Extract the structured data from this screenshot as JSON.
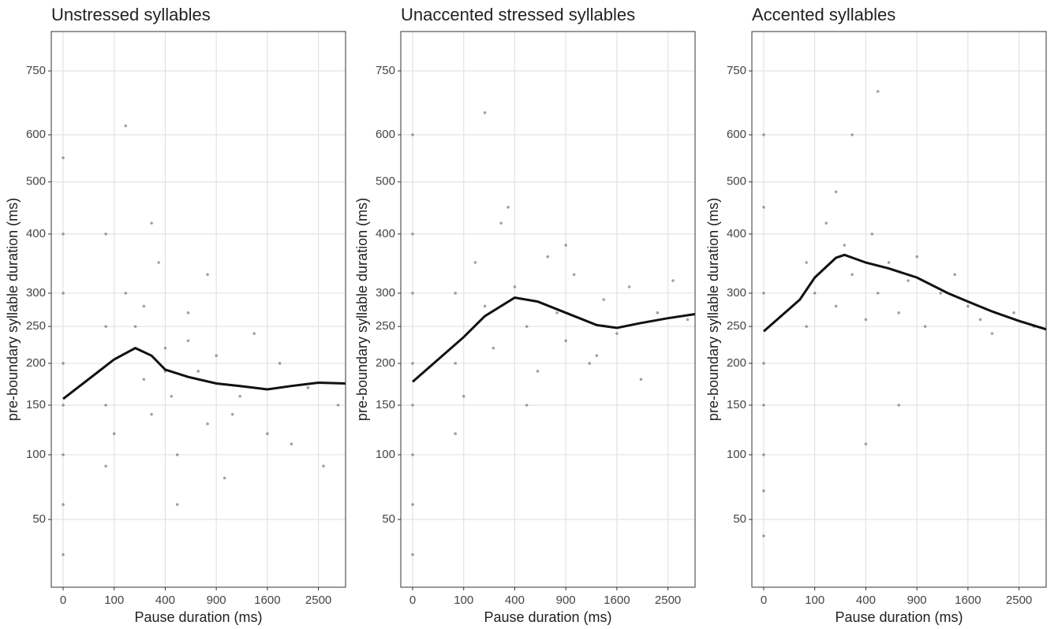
{
  "chart_data": [
    {
      "type": "scatter",
      "title": "Unstressed syllables",
      "x_label": "Pause duration (ms)",
      "y_label": "pre-boundary syllable duration (ms)",
      "x_scale": "sqrt",
      "y_scale": "sqrt",
      "xlim": [
        0,
        3060
      ],
      "ylim": [
        16,
        851
      ],
      "xticks": [
        0,
        100,
        400,
        900,
        1600,
        2500
      ],
      "yticks": [
        50,
        100,
        150,
        200,
        250,
        300,
        400,
        500,
        600,
        750
      ],
      "grid": true,
      "point_color": "#555555",
      "line_color": "#111111",
      "points": {
        "x": [
          0,
          0,
          0,
          0,
          0,
          0,
          0,
          0,
          70,
          70,
          70,
          70,
          100,
          150,
          200,
          250,
          300,
          350,
          400,
          450,
          500,
          600,
          700,
          800,
          900,
          1000,
          1200,
          1400,
          1600,
          1800,
          2000,
          2300,
          2600,
          2900,
          150,
          300,
          500,
          800,
          1100,
          400,
          600,
          250
        ],
        "y": [
          30,
          60,
          100,
          150,
          200,
          300,
          400,
          550,
          90,
          150,
          250,
          400,
          120,
          300,
          250,
          180,
          140,
          350,
          220,
          160,
          100,
          270,
          190,
          130,
          210,
          80,
          160,
          240,
          120,
          200,
          110,
          170,
          90,
          150,
          620,
          420,
          60,
          330,
          140,
          190,
          230,
          280
        ]
      },
      "smooth": {
        "x": [
          0,
          100,
          200,
          300,
          400,
          600,
          900,
          1200,
          1600,
          2000,
          2500,
          3060
        ],
        "y": [
          157,
          205,
          220,
          210,
          192,
          183,
          175,
          172,
          168,
          172,
          176,
          175
        ]
      }
    },
    {
      "type": "scatter",
      "title": "Unaccented stressed syllables",
      "x_label": "Pause duration (ms)",
      "y_label": "pre-boundary syllable duration (ms)",
      "x_scale": "sqrt",
      "y_scale": "sqrt",
      "xlim": [
        0,
        3060
      ],
      "ylim": [
        16,
        851
      ],
      "xticks": [
        0,
        100,
        400,
        900,
        1600,
        2500
      ],
      "yticks": [
        50,
        100,
        150,
        200,
        250,
        300,
        400,
        500,
        600,
        750
      ],
      "grid": true,
      "point_color": "#555555",
      "line_color": "#111111",
      "points": {
        "x": [
          0,
          0,
          0,
          0,
          0,
          0,
          0,
          0,
          70,
          70,
          70,
          100,
          150,
          200,
          250,
          300,
          400,
          500,
          600,
          700,
          800,
          900,
          1000,
          1200,
          1400,
          1600,
          1800,
          2000,
          2300,
          2600,
          2900,
          200,
          350,
          500,
          900,
          1300
        ],
        "y": [
          30,
          60,
          100,
          150,
          200,
          300,
          400,
          600,
          120,
          200,
          300,
          160,
          350,
          280,
          220,
          420,
          310,
          250,
          190,
          360,
          270,
          230,
          330,
          200,
          290,
          240,
          310,
          180,
          270,
          320,
          260,
          650,
          450,
          150,
          380,
          210
        ]
      },
      "smooth": {
        "x": [
          0,
          100,
          200,
          400,
          600,
          900,
          1300,
          1600,
          2000,
          2500,
          3060
        ],
        "y": [
          177,
          235,
          265,
          293,
          287,
          270,
          252,
          248,
          255,
          262,
          268
        ]
      }
    },
    {
      "type": "scatter",
      "title": "Accented syllables",
      "x_label": "Pause duration (ms)",
      "y_label": "pre-boundary syllable duration (ms)",
      "x_scale": "sqrt",
      "y_scale": "sqrt",
      "xlim": [
        0,
        3060
      ],
      "ylim": [
        16,
        851
      ],
      "xticks": [
        0,
        100,
        400,
        900,
        1600,
        2500
      ],
      "yticks": [
        50,
        100,
        150,
        200,
        250,
        300,
        400,
        500,
        600,
        750
      ],
      "grid": true,
      "point_color": "#555555",
      "line_color": "#111111",
      "points": {
        "x": [
          0,
          0,
          0,
          0,
          0,
          0,
          0,
          0,
          70,
          70,
          100,
          150,
          200,
          250,
          300,
          400,
          450,
          500,
          600,
          700,
          800,
          900,
          1000,
          1200,
          1400,
          1600,
          1800,
          2000,
          2400,
          2800,
          300,
          500,
          700,
          200,
          400
        ],
        "y": [
          40,
          70,
          100,
          150,
          200,
          300,
          450,
          600,
          250,
          350,
          300,
          420,
          280,
          380,
          330,
          260,
          400,
          300,
          350,
          270,
          320,
          360,
          250,
          300,
          330,
          280,
          260,
          240,
          270,
          250,
          600,
          700,
          150,
          480,
          110
        ]
      },
      "smooth": {
        "x": [
          0,
          50,
          100,
          200,
          250,
          400,
          600,
          900,
          1300,
          1600,
          2000,
          2500,
          3060
        ],
        "y": [
          243,
          290,
          325,
          358,
          363,
          350,
          340,
          325,
          300,
          287,
          272,
          258,
          246
        ]
      }
    }
  ]
}
